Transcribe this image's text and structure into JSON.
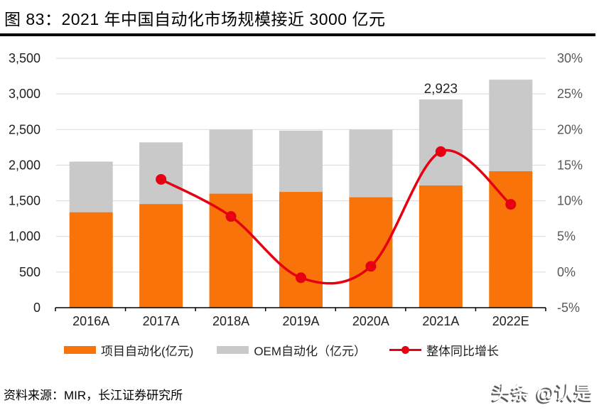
{
  "title": "图 83：2021 年中国自动化市场规模接近 3000 亿元",
  "source": "资料来源：MIR，长江证券研究所",
  "watermark": "头条 @认是",
  "colors": {
    "bar_project": "#F8740B",
    "bar_oem": "#C9C9C9",
    "line_growth": "#E60012",
    "gridline": "#D9D9D9",
    "axis": "#000000",
    "left_tick_text": "#1f1f1f",
    "right_tick_text": "#595959"
  },
  "legend": [
    {
      "label": "项目自动化(亿元)",
      "type": "bar",
      "color_key": "bar_project"
    },
    {
      "label": "OEM自动化（亿元）",
      "type": "bar",
      "color_key": "bar_oem"
    },
    {
      "label": "整体同比增长",
      "type": "line",
      "color_key": "line_growth"
    }
  ],
  "chart_data": {
    "type": "combo-stacked-bar-line",
    "title": "2021 年中国自动化市场规模接近 3000 亿元",
    "categories": [
      "2016A",
      "2017A",
      "2018A",
      "2019A",
      "2020A",
      "2021A",
      "2022E"
    ],
    "series": [
      {
        "name": "项目自动化(亿元)",
        "type": "bar",
        "stack": "total",
        "axis": "left",
        "values": [
          1340,
          1455,
          1600,
          1625,
          1550,
          1715,
          1915
        ]
      },
      {
        "name": "OEM自动化（亿元）",
        "type": "bar",
        "stack": "total",
        "axis": "left",
        "values": [
          710,
          865,
          900,
          860,
          950,
          1208,
          1285
        ]
      },
      {
        "name": "整体同比增长",
        "type": "line",
        "axis": "right",
        "unit": "%",
        "values": [
          null,
          13.0,
          7.8,
          -0.8,
          0.8,
          16.9,
          9.5
        ]
      }
    ],
    "stack_totals": [
      2050,
      2320,
      2500,
      2485,
      2500,
      2923,
      3200
    ],
    "annotations": [
      {
        "category": "2021A",
        "text": "2,923",
        "value": 2923
      }
    ],
    "left_axis": {
      "range": [
        0,
        3500
      ],
      "step": 500,
      "ticks": [
        "0",
        "500",
        "1,000",
        "1,500",
        "2,000",
        "2,500",
        "3,000",
        "3,500"
      ]
    },
    "right_axis": {
      "range": [
        -5,
        30
      ],
      "step": 5,
      "ticks": [
        "-5%",
        "0%",
        "5%",
        "10%",
        "15%",
        "20%",
        "25%",
        "30%"
      ]
    },
    "grid": "horizontal",
    "legend_position": "bottom"
  }
}
